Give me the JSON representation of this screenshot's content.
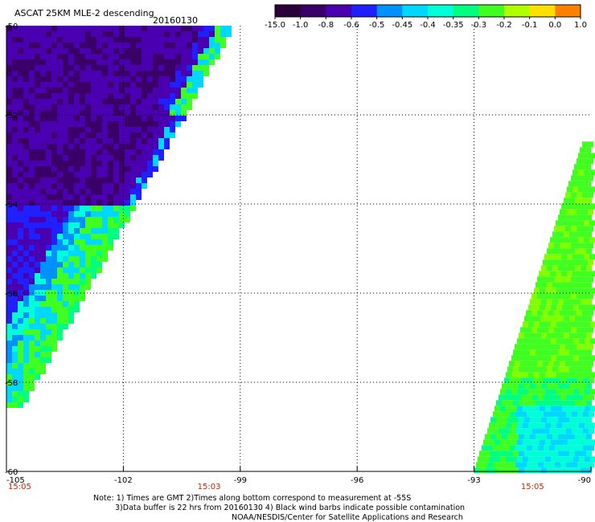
{
  "title": "ASCAT 25KM MLE-2 descending",
  "date": "20160130",
  "colorbar": {
    "labels": [
      "-15.0",
      "-1.0",
      "-0.8",
      "-0.6",
      "-0.5",
      "-0.45",
      "-0.4",
      "-0.35",
      "-0.3",
      "-0.2",
      "-0.1",
      "0.0",
      "1.0"
    ],
    "colors": [
      "#2a0038",
      "#3a0068",
      "#4a00b0",
      "#2020ff",
      "#0090ff",
      "#00d8ff",
      "#00ffd8",
      "#00ff80",
      "#40ff20",
      "#b0ff00",
      "#ffe000",
      "#ff8000",
      "#ff2020"
    ]
  },
  "chart_data": {
    "type": "heatmap",
    "title": "ASCAT 25KM MLE-2 descending",
    "subtitle": "20160130",
    "x_ticks": [
      -105,
      -102,
      -99,
      -96,
      -93,
      -90
    ],
    "x_tick_labels": [
      "-105",
      "-102",
      "-99",
      "-96",
      "-93",
      "-90"
    ],
    "y_ticks": [
      -50,
      -52,
      -54,
      -56,
      -58,
      -60
    ],
    "y_tick_labels": [
      "-50",
      "-52",
      "-54",
      "-56",
      "-58",
      "-60"
    ],
    "xlim": [
      -105,
      -90
    ],
    "ylim": [
      -60,
      -50
    ],
    "times": [
      {
        "x": -105,
        "label": "15:05"
      },
      {
        "x": -99.8,
        "label": "15:03"
      },
      {
        "x": -91.5,
        "label": "15:05"
      }
    ],
    "swaths": [
      {
        "name": "left",
        "left_lon": -105,
        "edge_top": [
          -99.2,
          -50
        ],
        "edge_bottom": [
          -104.6,
          -58.5
        ]
      },
      {
        "name": "right",
        "right_lon": -90,
        "edge_top": [
          -90.2,
          -52.6
        ],
        "edge_bottom": [
          -93,
          -60
        ]
      }
    ]
  },
  "notes": [
    "Note: 1) Times are GMT 2)Times along bottom correspond to measurement at -55S",
    "3)Data buffer is 22 hrs from 20160130 4) Black wind barbs indicate possible contamination",
    "NOAA/NESDIS/Center for Satellite Applications and Research"
  ]
}
